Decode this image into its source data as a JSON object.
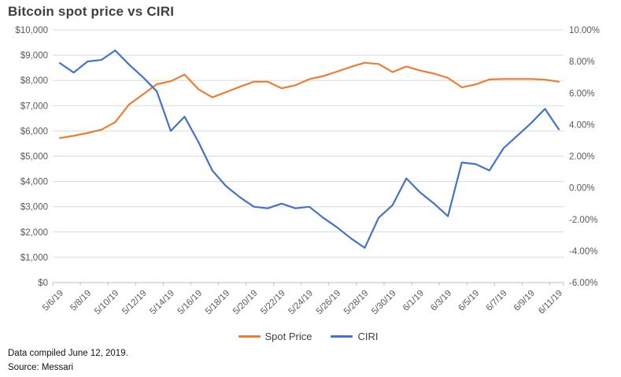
{
  "title": "Bitcoin spot price vs CIRI",
  "legend": {
    "spot_label": "Spot Price",
    "ciri_label": "CIRI"
  },
  "footer": {
    "line1": "Data compiled June 12, 2019.",
    "line2": "Source: Messari"
  },
  "colors": {
    "spot": "#ED7D31",
    "ciri": "#4472C4",
    "gridline": "#D9D9D9",
    "axis_line": "#BFBFBF",
    "axis_text": "#595959",
    "title_text": "#3F3F3F"
  },
  "chart_data": {
    "type": "line",
    "title": "Bitcoin spot price vs CIRI",
    "grid": "horizontal",
    "legend_position": "bottom",
    "x": [
      "5/6/19",
      "5/7/19",
      "5/8/19",
      "5/9/19",
      "5/10/19",
      "5/11/19",
      "5/12/19",
      "5/13/19",
      "5/14/19",
      "5/15/19",
      "5/16/19",
      "5/17/19",
      "5/18/19",
      "5/19/19",
      "5/20/19",
      "5/21/19",
      "5/22/19",
      "5/23/19",
      "5/24/19",
      "5/25/19",
      "5/26/19",
      "5/27/19",
      "5/28/19",
      "5/29/19",
      "5/30/19",
      "5/31/19",
      "6/1/19",
      "6/2/19",
      "6/3/19",
      "6/4/19",
      "6/5/19",
      "6/6/19",
      "6/7/19",
      "6/8/19",
      "6/9/19",
      "6/10/19",
      "6/11/19"
    ],
    "x_tick_labels": [
      "5/6/19",
      "5/8/19",
      "5/10/19",
      "5/12/19",
      "5/14/19",
      "5/16/19",
      "5/18/19",
      "5/20/19",
      "5/22/19",
      "5/24/19",
      "5/26/19",
      "5/28/19",
      "5/30/19",
      "6/1/19",
      "6/3/19",
      "6/5/19",
      "6/7/19",
      "6/9/19",
      "6/11/19"
    ],
    "series": [
      {
        "name": "Spot Price",
        "axis": "left",
        "color": "#ED7D31",
        "values": [
          5720,
          5810,
          5920,
          6050,
          6350,
          7050,
          7450,
          7850,
          7970,
          8230,
          7650,
          7330,
          7540,
          7750,
          7950,
          7950,
          7690,
          7810,
          8050,
          8170,
          8350,
          8540,
          8700,
          8650,
          8330,
          8550,
          8390,
          8270,
          8100,
          7730,
          7840,
          8040,
          8060,
          8060,
          8060,
          8030,
          7950
        ]
      },
      {
        "name": "CIRI",
        "axis": "right",
        "color": "#4472C4",
        "values": [
          7.9,
          7.3,
          8.0,
          8.1,
          8.7,
          7.8,
          7.0,
          6.1,
          3.6,
          4.5,
          2.9,
          1.1,
          0.1,
          -0.6,
          -1.2,
          -1.3,
          -1.0,
          -1.3,
          -1.2,
          -1.9,
          -2.5,
          -3.2,
          -3.8,
          -1.9,
          -1.1,
          0.6,
          -0.3,
          -1.0,
          -1.8,
          1.6,
          1.5,
          1.1,
          2.5,
          3.3,
          4.1,
          5.0,
          3.7
        ]
      }
    ],
    "y_left": {
      "min": 0,
      "max": 10000,
      "labels": [
        "$10,000",
        "$9,000",
        "$8,000",
        "$7,000",
        "$6,000",
        "$5,000",
        "$4,000",
        "$3,000",
        "$2,000",
        "$1,000",
        "$0"
      ]
    },
    "y_right": {
      "min": -6,
      "max": 10,
      "labels": [
        "10.00%",
        "8.00%",
        "6.00%",
        "4.00%",
        "2.00%",
        "0.00%",
        "-2.00%",
        "-4.00%",
        "-6.00%"
      ]
    }
  }
}
